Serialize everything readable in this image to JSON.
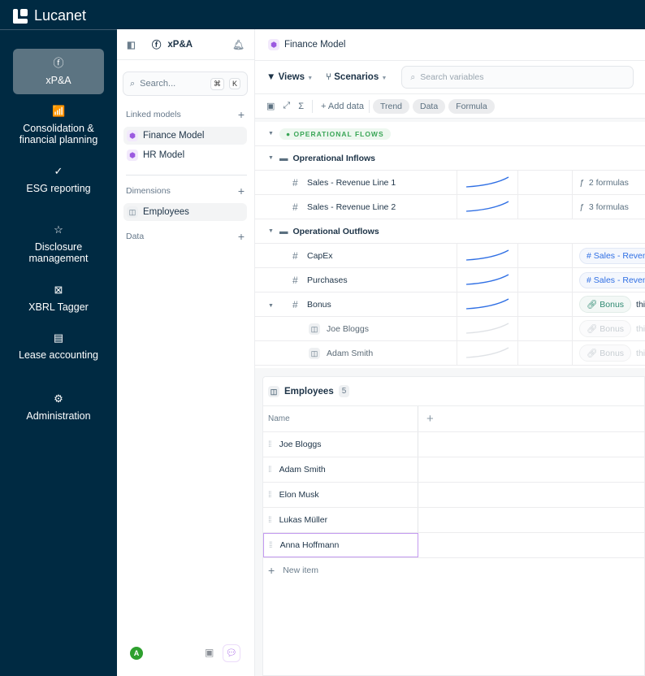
{
  "app": {
    "brand": "Lucanet"
  },
  "nav": [
    {
      "label": "xP&A",
      "icon": "f-circle-icon",
      "active": true
    },
    {
      "label": "Consolidation & financial planning",
      "icon": "chart-up-icon"
    },
    {
      "label": "ESG reporting",
      "icon": "leaf-check-icon"
    },
    {
      "label": "Disclosure management",
      "icon": "star-doc-icon"
    },
    {
      "label": "XBRL Tagger",
      "icon": "xbrl-icon"
    },
    {
      "label": "Lease accounting",
      "icon": "lease-icon"
    },
    {
      "label": "Administration",
      "icon": "gear-icon"
    }
  ],
  "panel": {
    "title": "xP&A",
    "search_placeholder": "Search...",
    "kbd1": "⌘",
    "kbd2": "K",
    "linked_label": "Linked models",
    "linked": [
      "Finance Model",
      "HR Model"
    ],
    "dimensions_label": "Dimensions",
    "dimensions": [
      "Employees"
    ],
    "data_label": "Data",
    "avatar": "A"
  },
  "main": {
    "title": "Finance Model",
    "views": "Views",
    "scenarios": "Scenarios",
    "search_placeholder": "Search variables",
    "add_data": "Add data",
    "chips": [
      "Trend",
      "Data",
      "Formula"
    ],
    "group": "OPERATIONAL FLOWS",
    "rows": [
      {
        "type": "folder",
        "name": "Oprerational Inflows"
      },
      {
        "type": "var",
        "name": "Sales - Revenue Line 1",
        "formula": "2 formulas"
      },
      {
        "type": "var",
        "name": "Sales - Revenue Line 2",
        "formula": "3 formulas"
      },
      {
        "type": "folder",
        "name": "Operational Outflows"
      },
      {
        "type": "var",
        "name": "CapEx",
        "ref": "Sales - Reven"
      },
      {
        "type": "var",
        "name": "Purchases",
        "ref": "Sales - Reven"
      },
      {
        "type": "var",
        "name": "Bonus",
        "link": "Bonus",
        "suffix": "this r"
      },
      {
        "type": "child",
        "name": "Joe Bloggs",
        "link": "Bonus",
        "suffix": "this r"
      },
      {
        "type": "child",
        "name": "Adam Smith",
        "link": "Bonus",
        "suffix": "this r"
      }
    ]
  },
  "employees": {
    "title": "Employees",
    "count": "5",
    "col": "Name",
    "items": [
      "Joe Bloggs",
      "Adam Smith",
      "Elon Musk",
      "Lukas Müller",
      "Anna Hoffmann"
    ],
    "new_item": "New item"
  },
  "colors": {
    "navy": "#002a42",
    "accent": "#9b59e0",
    "trend": "#2f6fe4",
    "green": "#3aa657"
  }
}
